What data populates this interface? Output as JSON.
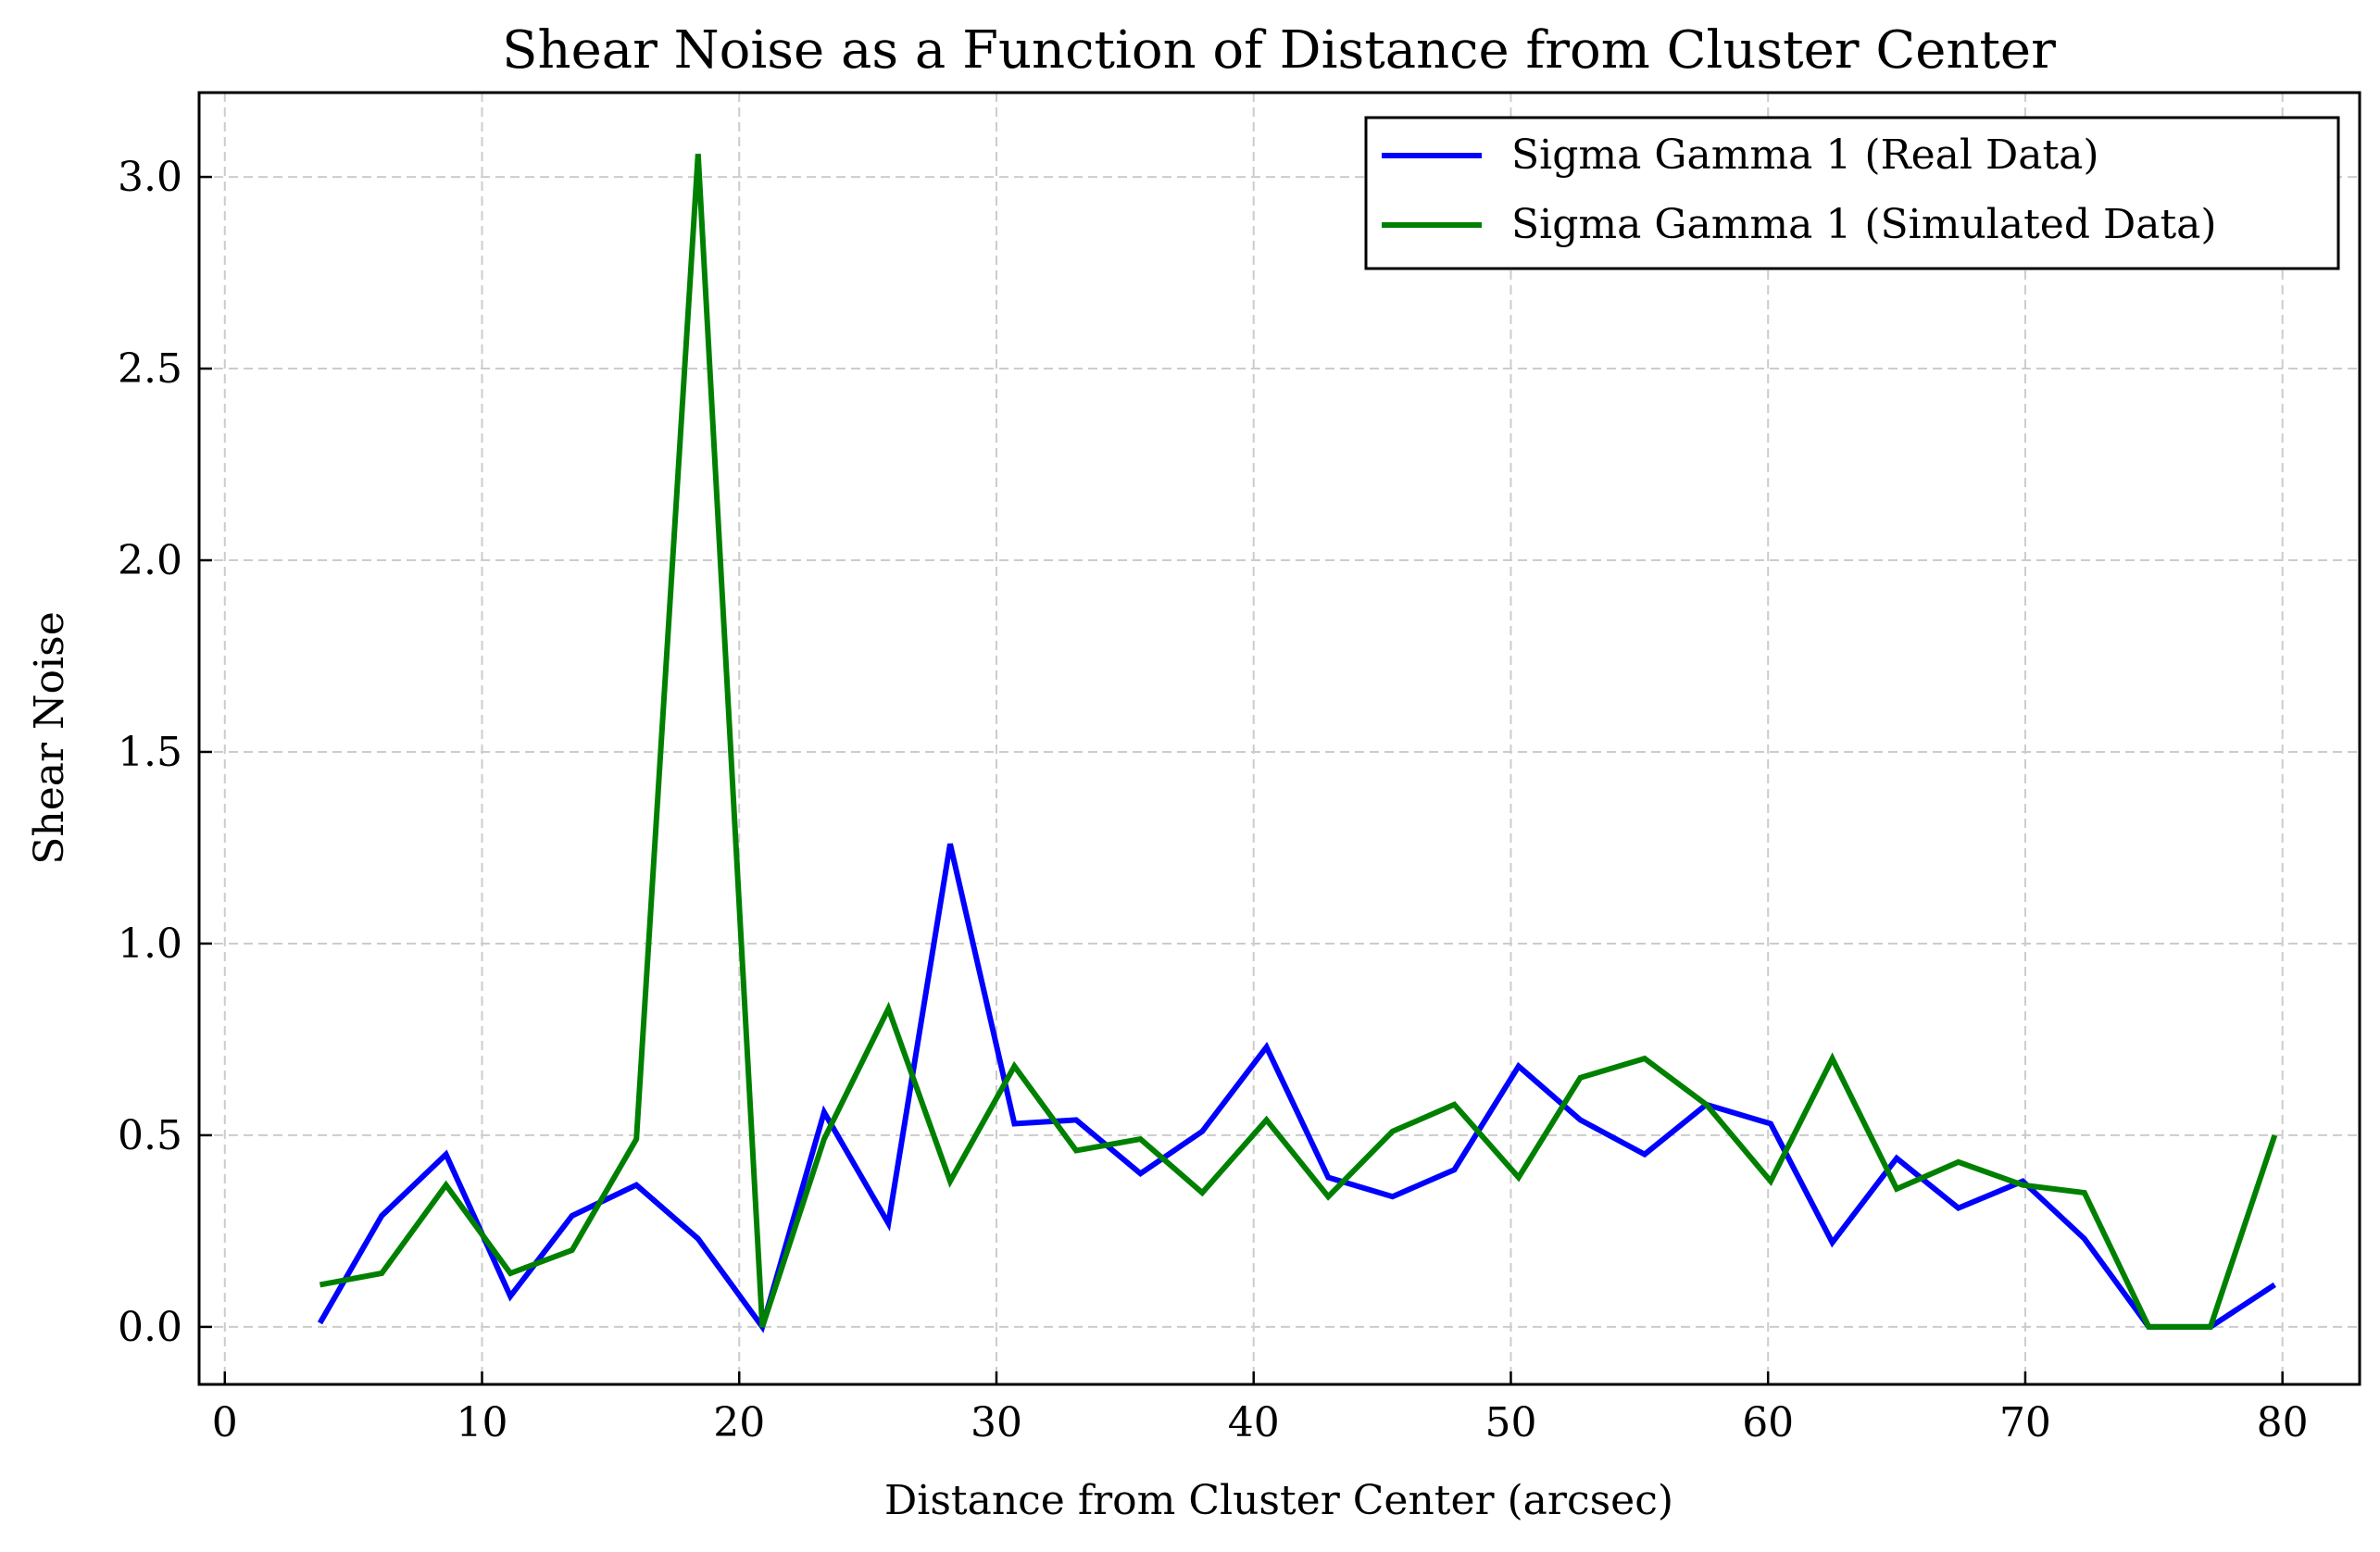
{
  "chart_data": {
    "type": "line",
    "title": "Shear Noise as a Function of Distance from Cluster Center",
    "xlabel": "Distance from Cluster Center (arcsec)",
    "ylabel": "Shear Noise",
    "xlim": [
      -1,
      83
    ],
    "ylim": [
      -0.15,
      3.22
    ],
    "xticks": [
      0,
      10,
      20,
      30,
      40,
      50,
      60,
      70,
      80
    ],
    "xtick_labels": [
      "0",
      "10",
      "20",
      "30",
      "40",
      "50",
      "60",
      "70",
      "80"
    ],
    "yticks": [
      0,
      0.5,
      1,
      1.5,
      2,
      2.5,
      3
    ],
    "ytick_labels": [
      "0.0",
      "0.5",
      "1.0",
      "1.5",
      "2.0",
      "2.5",
      "3.0"
    ],
    "grid": true,
    "legend_position": "top-right",
    "x": [
      3.7,
      6.1,
      8.6,
      11.1,
      13.5,
      16.0,
      18.4,
      20.9,
      23.3,
      25.8,
      28.2,
      30.7,
      33.1,
      35.6,
      38.0,
      40.5,
      42.9,
      45.4,
      47.8,
      50.3,
      52.7,
      55.2,
      57.6,
      60.1,
      62.5,
      65.0,
      67.4,
      69.9,
      72.3,
      74.8,
      77.2,
      79.7
    ],
    "series": [
      {
        "name": "Sigma Gamma 1 (Real Data)",
        "color": "#0000ff",
        "values": [
          0.01,
          0.29,
          0.45,
          0.08,
          0.29,
          0.37,
          0.23,
          0.0,
          0.56,
          0.27,
          1.26,
          0.53,
          0.54,
          0.4,
          0.51,
          0.73,
          0.39,
          0.34,
          0.41,
          0.68,
          0.54,
          0.45,
          0.58,
          0.53,
          0.22,
          0.44,
          0.31,
          0.38,
          0.23,
          0.0,
          0.0,
          0.11
        ]
      },
      {
        "name": "Sigma Gamma 1 (Simulated Data)",
        "color": "#008000",
        "values": [
          0.11,
          0.14,
          0.37,
          0.14,
          0.2,
          0.49,
          3.06,
          0.0,
          0.49,
          0.83,
          0.38,
          0.68,
          0.46,
          0.49,
          0.35,
          0.54,
          0.34,
          0.51,
          0.58,
          0.39,
          0.65,
          0.7,
          0.58,
          0.38,
          0.7,
          0.36,
          0.43,
          0.37,
          0.35,
          0.0,
          0.0,
          0.5
        ]
      }
    ]
  }
}
